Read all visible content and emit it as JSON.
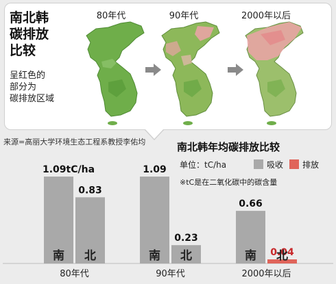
{
  "map_panel": {
    "title_lines": [
      "南北韩",
      "碳排放",
      "比较"
    ],
    "description_lines": [
      "呈红色的",
      "部分为",
      "碳排放区域"
    ],
    "eras": [
      "80年代",
      "90年代",
      "2000年以后"
    ]
  },
  "source": "来源=高丽大学环境生态工程系教授李佑均",
  "chart_header": {
    "title": "南北韩年均碳排放比较",
    "unit": "单位：tC/ha",
    "note": "※tC是在二氧化碳中的碳含量"
  },
  "colors": {
    "absorb": "#a9a9a9",
    "emit": "#e0645a",
    "emit_text": "#c8282a",
    "map_green": "#6fae4a",
    "map_red": "#e8a4a4",
    "arrow": "#8a8a8a"
  },
  "chart_data": {
    "type": "bar",
    "title": "南北韩年均碳排放比较",
    "ylabel": "",
    "xlabel": "",
    "unit": "tC/ha",
    "ylim": [
      0,
      1.2
    ],
    "categories": [
      "80年代",
      "90年代",
      "2000年以后"
    ],
    "legend": [
      {
        "label": "吸收",
        "color": "#a9a9a9"
      },
      {
        "label": "排放",
        "color": "#e0645a"
      }
    ],
    "series": [
      {
        "name": "南",
        "values": [
          1.09,
          1.09,
          0.66
        ],
        "status": [
          "吸收",
          "吸收",
          "吸收"
        ]
      },
      {
        "name": "北",
        "values": [
          0.83,
          0.23,
          0.04
        ],
        "status": [
          "吸收",
          "吸收",
          "排放"
        ]
      }
    ],
    "data_labels": [
      [
        "1.09tC/ha",
        "0.83"
      ],
      [
        "1.09",
        "0.23"
      ],
      [
        "0.66",
        "0.04"
      ]
    ]
  }
}
